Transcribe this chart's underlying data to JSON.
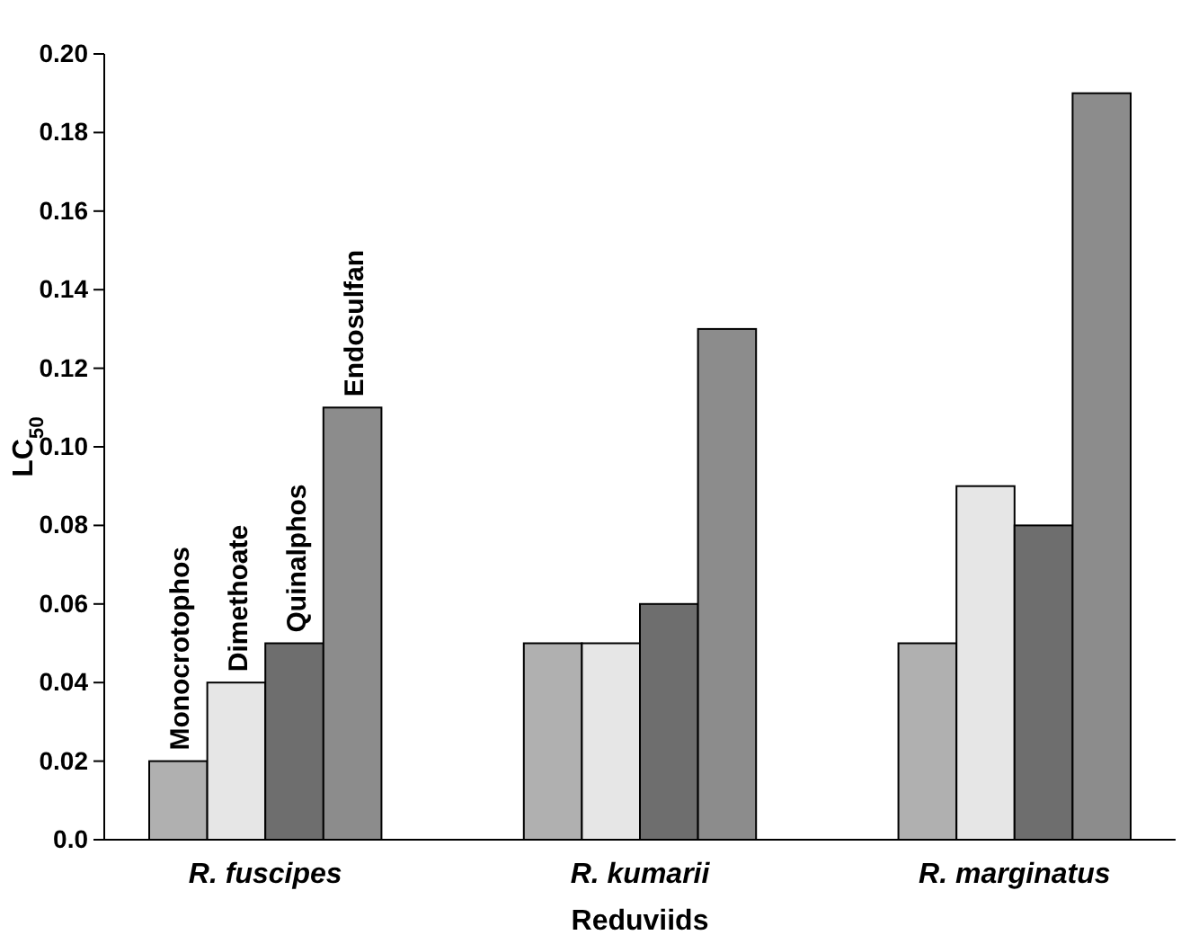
{
  "chart_data": {
    "type": "bar",
    "xlabel": "Reduviids",
    "ylabel": "LC$_{50}$",
    "categories": [
      "R. fuscipes",
      "R. kumarii",
      "R. marginatus"
    ],
    "series": [
      {
        "name": "Monocrotophos",
        "color": "#b0b0b0",
        "values": [
          0.02,
          0.05,
          0.05
        ]
      },
      {
        "name": "Dimethoate",
        "color": "#e6e6e6",
        "values": [
          0.04,
          0.05,
          0.09
        ]
      },
      {
        "name": "Quinalphos",
        "color": "#6e6e6e",
        "values": [
          0.05,
          0.06,
          0.08
        ]
      },
      {
        "name": "Endosulfan",
        "color": "#8c8c8c",
        "values": [
          0.11,
          0.13,
          0.19
        ]
      }
    ],
    "ylim": [
      0,
      0.2
    ],
    "yticks": [
      {
        "value": 0,
        "label": "0.0"
      },
      0.02,
      0.04,
      0.06,
      0.08,
      {
        "value": 0.1,
        "label": "0.10"
      },
      0.12,
      0.14,
      0.16,
      0.18,
      {
        "value": 0.2,
        "label": "0.20"
      }
    ],
    "legend": false,
    "grid": false
  }
}
